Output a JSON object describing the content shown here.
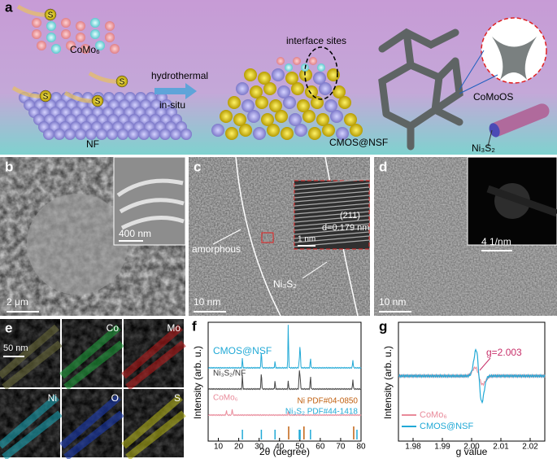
{
  "panel_a": {
    "letter": "a",
    "s_labels": [
      "S",
      "S",
      "S",
      "S"
    ],
    "como6": "CoMo₆",
    "arrow_top": "hydrothermal",
    "arrow_bottom": "in-situ",
    "interface": "interface sites",
    "comoos": "CoMoOS",
    "ni3s2": "Ni₃S₂",
    "nf": "NF",
    "cmos": "CMOS@NSF"
  },
  "panel_b": {
    "letter": "b",
    "inset_scale": "400 nm",
    "scale": "2 μm"
  },
  "panel_c": {
    "letter": "c",
    "amorphous": "amorphous",
    "plane": "(211)",
    "spacing": "d=0.179 nm",
    "inset_scale": "1 nm",
    "phase": "Ni₃S₂",
    "scale": "10 nm"
  },
  "panel_d": {
    "letter": "d",
    "inset_scale": "4 1/nm",
    "scale": "10 nm"
  },
  "panel_e": {
    "letter": "e",
    "maps": [
      "",
      "Co",
      "Mo",
      "Ni",
      "O",
      "S"
    ],
    "scale": "50 nm"
  },
  "panel_f": {
    "letter": "f",
    "ylabel": "Intensity (arb. u.)",
    "xlabel": "2θ (degree)",
    "curves": [
      "CMOS@NSF",
      "Ni₃S₂/NF",
      "CoMo₆"
    ],
    "refs": [
      "Ni PDF#04-0850",
      "Ni₃S₂ PDF#44-1418"
    ],
    "xticks": [
      "10",
      "20",
      "30",
      "40",
      "50",
      "60",
      "70",
      "80"
    ]
  },
  "panel_g": {
    "letter": "g",
    "ylabel": "Intensity (arb. u.)",
    "xlabel": "g value",
    "annotation": "g=2.003",
    "legend": [
      "CoMo₆",
      "CMOS@NSF"
    ],
    "xticks": [
      "1.98",
      "1.99",
      "2.00",
      "2.01",
      "2.02"
    ]
  }
}
